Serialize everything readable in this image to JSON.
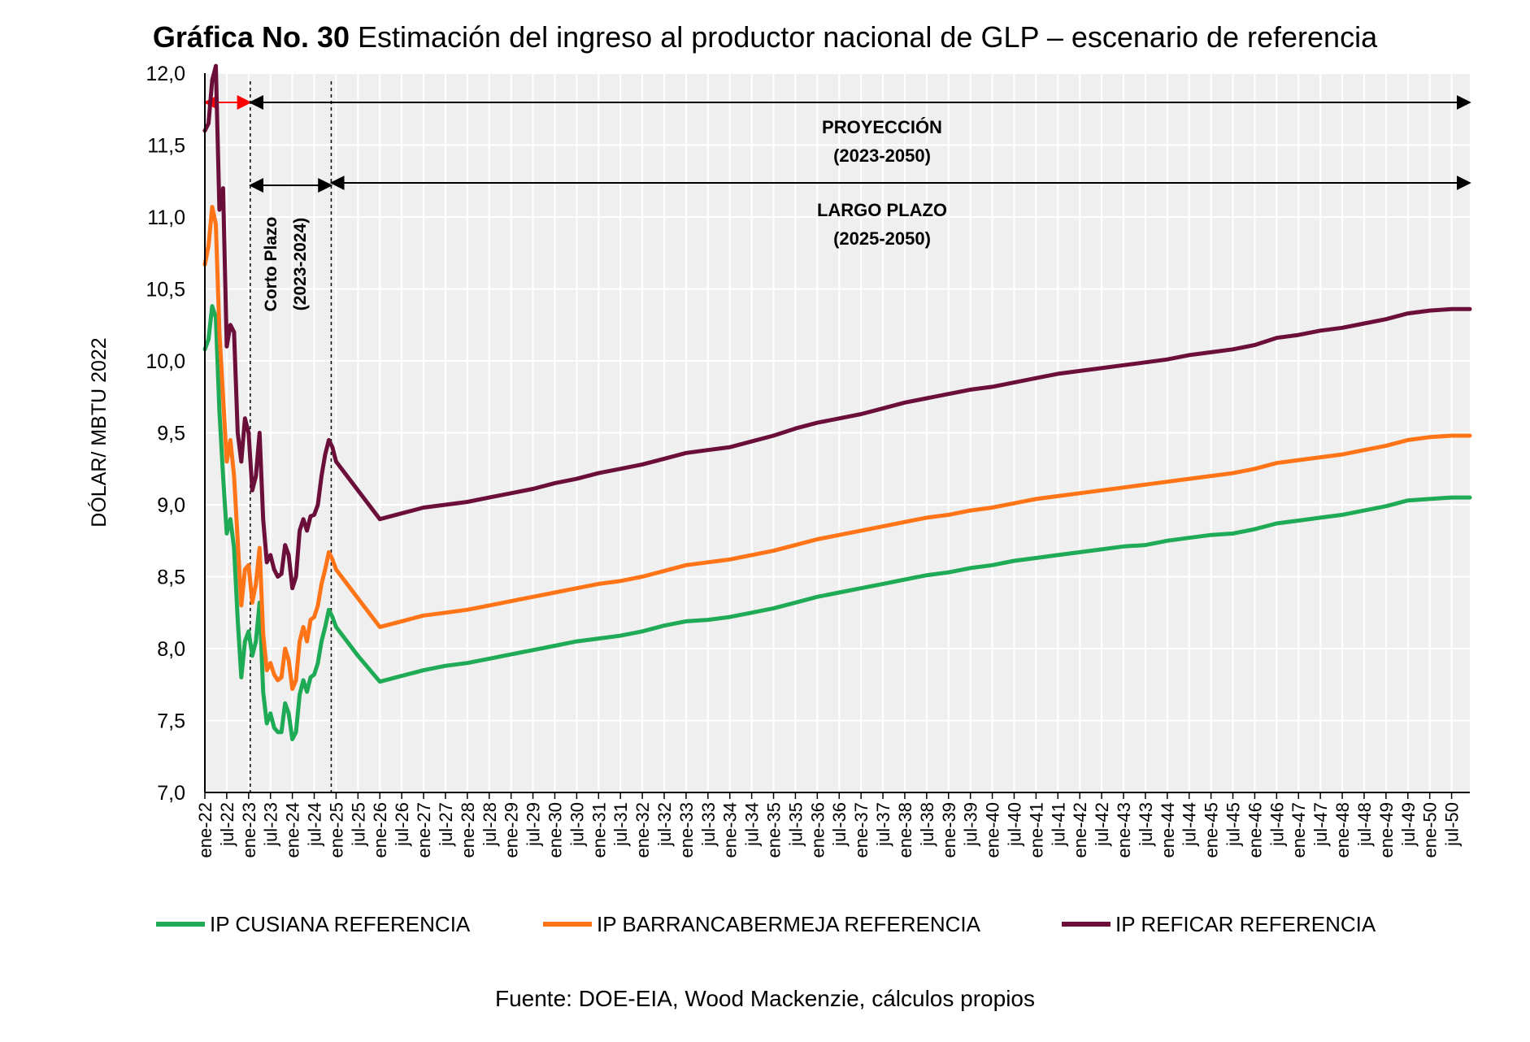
{
  "title_prefix": "Gráfica No. 30",
  "title_rest": "Estimación del ingreso al productor nacional de GLP – escenario de referencia",
  "source": "Fuente: DOE-EIA, Wood Mackenzie, cálculos propios",
  "annotations": {
    "corto_line1": "Corto Plazo",
    "corto_line2": "(2023-2024)",
    "proy_line1": "PROYECCIÓN",
    "proy_line2": "(2023-2050)",
    "largo_line1": "LARGO PLAZO",
    "largo_line2": "(2025-2050)"
  },
  "colors": {
    "cusiana": "#1faa55",
    "barranca": "#ff7417",
    "reficar": "#6b0f3a",
    "plot_bg": "#efefef",
    "grid": "#ffffff",
    "red_arrow": "#ff0000"
  },
  "chart_data": {
    "type": "line",
    "ylabel": "DÓLAR/ MBTU 2022",
    "xlabel": "",
    "ylim": [
      7.0,
      12.0
    ],
    "yticks": [
      "7,0",
      "7,5",
      "8,0",
      "8,5",
      "9,0",
      "9,5",
      "10,0",
      "10,5",
      "11,0",
      "11,5",
      "12,0"
    ],
    "x_start": "ene-22",
    "x_end": "dic-50",
    "xtick_labels": [
      "ene-22",
      "jul-22",
      "ene-23",
      "jul-23",
      "ene-24",
      "jul-24",
      "ene-25",
      "jul-25",
      "ene-26",
      "jul-26",
      "ene-27",
      "jul-27",
      "ene-28",
      "jul-28",
      "ene-29",
      "jul-29",
      "ene-30",
      "jul-30",
      "ene-31",
      "jul-31",
      "ene-32",
      "jul-32",
      "ene-33",
      "jul-33",
      "ene-34",
      "jul-34",
      "ene-35",
      "jul-35",
      "ene-36",
      "jul-36",
      "ene-37",
      "jul-37",
      "ene-38",
      "jul-38",
      "ene-39",
      "jul-39",
      "ene-40",
      "jul-40",
      "ene-41",
      "jul-41",
      "ene-42",
      "jul-42",
      "ene-43",
      "jul-43",
      "ene-44",
      "jul-44",
      "ene-45",
      "jul-45",
      "ene-46",
      "jul-46",
      "ene-47",
      "jul-47",
      "ene-48",
      "jul-48",
      "ene-49",
      "jul-49",
      "ene-50",
      "jul-50"
    ],
    "legend_position": "bottom",
    "series": [
      {
        "name": "IP CUSIANA REFERENCIA",
        "color_key": "cusiana",
        "points": [
          [
            "ene-22",
            10.08
          ],
          [
            "feb-22",
            10.15
          ],
          [
            "mar-22",
            10.38
          ],
          [
            "abr-22",
            10.3
          ],
          [
            "may-22",
            9.65
          ],
          [
            "jun-22",
            9.2
          ],
          [
            "jul-22",
            8.8
          ],
          [
            "ago-22",
            8.9
          ],
          [
            "sep-22",
            8.7
          ],
          [
            "oct-22",
            8.2
          ],
          [
            "nov-22",
            7.8
          ],
          [
            "dic-22",
            8.05
          ],
          [
            "ene-23",
            8.12
          ],
          [
            "feb-23",
            7.95
          ],
          [
            "mar-23",
            8.05
          ],
          [
            "abr-23",
            8.32
          ],
          [
            "may-23",
            7.7
          ],
          [
            "jun-23",
            7.48
          ],
          [
            "jul-23",
            7.55
          ],
          [
            "ago-23",
            7.45
          ],
          [
            "sep-23",
            7.42
          ],
          [
            "oct-23",
            7.42
          ],
          [
            "nov-23",
            7.62
          ],
          [
            "dic-23",
            7.55
          ],
          [
            "ene-24",
            7.37
          ],
          [
            "feb-24",
            7.42
          ],
          [
            "mar-24",
            7.68
          ],
          [
            "abr-24",
            7.78
          ],
          [
            "may-24",
            7.7
          ],
          [
            "jun-24",
            7.8
          ],
          [
            "jul-24",
            7.82
          ],
          [
            "ago-24",
            7.9
          ],
          [
            "sep-24",
            8.05
          ],
          [
            "oct-24",
            8.15
          ],
          [
            "nov-24",
            8.27
          ],
          [
            "dic-24",
            8.22
          ],
          [
            "ene-25",
            8.15
          ],
          [
            "jul-25",
            7.95
          ],
          [
            "ene-26",
            7.77
          ],
          [
            "jul-26",
            7.81
          ],
          [
            "ene-27",
            7.85
          ],
          [
            "jul-27",
            7.88
          ],
          [
            "ene-28",
            7.9
          ],
          [
            "jul-28",
            7.93
          ],
          [
            "ene-29",
            7.96
          ],
          [
            "jul-29",
            7.99
          ],
          [
            "ene-30",
            8.02
          ],
          [
            "jul-30",
            8.05
          ],
          [
            "ene-31",
            8.07
          ],
          [
            "jul-31",
            8.09
          ],
          [
            "ene-32",
            8.12
          ],
          [
            "jul-32",
            8.16
          ],
          [
            "ene-33",
            8.19
          ],
          [
            "jul-33",
            8.2
          ],
          [
            "ene-34",
            8.22
          ],
          [
            "jul-34",
            8.25
          ],
          [
            "ene-35",
            8.28
          ],
          [
            "jul-35",
            8.32
          ],
          [
            "ene-36",
            8.36
          ],
          [
            "jul-36",
            8.39
          ],
          [
            "ene-37",
            8.42
          ],
          [
            "jul-37",
            8.45
          ],
          [
            "ene-38",
            8.48
          ],
          [
            "jul-38",
            8.51
          ],
          [
            "ene-39",
            8.53
          ],
          [
            "jul-39",
            8.56
          ],
          [
            "ene-40",
            8.58
          ],
          [
            "jul-40",
            8.61
          ],
          [
            "ene-41",
            8.63
          ],
          [
            "jul-41",
            8.65
          ],
          [
            "ene-42",
            8.67
          ],
          [
            "jul-42",
            8.69
          ],
          [
            "ene-43",
            8.71
          ],
          [
            "jul-43",
            8.72
          ],
          [
            "ene-44",
            8.75
          ],
          [
            "jul-44",
            8.77
          ],
          [
            "ene-45",
            8.79
          ],
          [
            "jul-45",
            8.8
          ],
          [
            "ene-46",
            8.83
          ],
          [
            "jul-46",
            8.87
          ],
          [
            "ene-47",
            8.89
          ],
          [
            "jul-47",
            8.91
          ],
          [
            "ene-48",
            8.93
          ],
          [
            "jul-48",
            8.96
          ],
          [
            "ene-49",
            8.99
          ],
          [
            "jul-49",
            9.03
          ],
          [
            "ene-50",
            9.04
          ],
          [
            "jul-50",
            9.05
          ],
          [
            "dic-50",
            9.05
          ]
        ]
      },
      {
        "name": "IP BARRANCABERMEJA REFERENCIA",
        "color_key": "barranca",
        "points": [
          [
            "ene-22",
            10.67
          ],
          [
            "feb-22",
            10.8
          ],
          [
            "mar-22",
            11.07
          ],
          [
            "abr-22",
            10.95
          ],
          [
            "may-22",
            10.2
          ],
          [
            "jun-22",
            9.75
          ],
          [
            "jul-22",
            9.3
          ],
          [
            "ago-22",
            9.45
          ],
          [
            "sep-22",
            9.2
          ],
          [
            "oct-22",
            8.75
          ],
          [
            "nov-22",
            8.3
          ],
          [
            "dic-22",
            8.55
          ],
          [
            "ene-23",
            8.58
          ],
          [
            "feb-23",
            8.32
          ],
          [
            "mar-23",
            8.45
          ],
          [
            "abr-23",
            8.7
          ],
          [
            "may-23",
            8.1
          ],
          [
            "jun-23",
            7.85
          ],
          [
            "jul-23",
            7.9
          ],
          [
            "ago-23",
            7.82
          ],
          [
            "sep-23",
            7.78
          ],
          [
            "oct-23",
            7.8
          ],
          [
            "nov-23",
            8.0
          ],
          [
            "dic-23",
            7.92
          ],
          [
            "ene-24",
            7.72
          ],
          [
            "feb-24",
            7.78
          ],
          [
            "mar-24",
            8.05
          ],
          [
            "abr-24",
            8.15
          ],
          [
            "may-24",
            8.05
          ],
          [
            "jun-24",
            8.2
          ],
          [
            "jul-24",
            8.22
          ],
          [
            "ago-24",
            8.3
          ],
          [
            "sep-24",
            8.45
          ],
          [
            "oct-24",
            8.55
          ],
          [
            "nov-24",
            8.67
          ],
          [
            "dic-24",
            8.62
          ],
          [
            "ene-25",
            8.55
          ],
          [
            "jul-25",
            8.35
          ],
          [
            "ene-26",
            8.15
          ],
          [
            "jul-26",
            8.19
          ],
          [
            "ene-27",
            8.23
          ],
          [
            "jul-27",
            8.25
          ],
          [
            "ene-28",
            8.27
          ],
          [
            "jul-28",
            8.3
          ],
          [
            "ene-29",
            8.33
          ],
          [
            "jul-29",
            8.36
          ],
          [
            "ene-30",
            8.39
          ],
          [
            "jul-30",
            8.42
          ],
          [
            "ene-31",
            8.45
          ],
          [
            "jul-31",
            8.47
          ],
          [
            "ene-32",
            8.5
          ],
          [
            "jul-32",
            8.54
          ],
          [
            "ene-33",
            8.58
          ],
          [
            "jul-33",
            8.6
          ],
          [
            "ene-34",
            8.62
          ],
          [
            "jul-34",
            8.65
          ],
          [
            "ene-35",
            8.68
          ],
          [
            "jul-35",
            8.72
          ],
          [
            "ene-36",
            8.76
          ],
          [
            "jul-36",
            8.79
          ],
          [
            "ene-37",
            8.82
          ],
          [
            "jul-37",
            8.85
          ],
          [
            "ene-38",
            8.88
          ],
          [
            "jul-38",
            8.91
          ],
          [
            "ene-39",
            8.93
          ],
          [
            "jul-39",
            8.96
          ],
          [
            "ene-40",
            8.98
          ],
          [
            "jul-40",
            9.01
          ],
          [
            "ene-41",
            9.04
          ],
          [
            "jul-41",
            9.06
          ],
          [
            "ene-42",
            9.08
          ],
          [
            "jul-42",
            9.1
          ],
          [
            "ene-43",
            9.12
          ],
          [
            "jul-43",
            9.14
          ],
          [
            "ene-44",
            9.16
          ],
          [
            "jul-44",
            9.18
          ],
          [
            "ene-45",
            9.2
          ],
          [
            "jul-45",
            9.22
          ],
          [
            "ene-46",
            9.25
          ],
          [
            "jul-46",
            9.29
          ],
          [
            "ene-47",
            9.31
          ],
          [
            "jul-47",
            9.33
          ],
          [
            "ene-48",
            9.35
          ],
          [
            "jul-48",
            9.38
          ],
          [
            "ene-49",
            9.41
          ],
          [
            "jul-49",
            9.45
          ],
          [
            "ene-50",
            9.47
          ],
          [
            "jul-50",
            9.48
          ],
          [
            "dic-50",
            9.48
          ]
        ]
      },
      {
        "name": "IP REFICAR REFERENCIA",
        "color_key": "reficar",
        "points": [
          [
            "ene-22",
            11.6
          ],
          [
            "feb-22",
            11.65
          ],
          [
            "mar-22",
            11.95
          ],
          [
            "abr-22",
            12.05
          ],
          [
            "may-22",
            11.05
          ],
          [
            "jun-22",
            11.2
          ],
          [
            "jul-22",
            10.1
          ],
          [
            "ago-22",
            10.25
          ],
          [
            "sep-22",
            10.2
          ],
          [
            "oct-22",
            9.5
          ],
          [
            "nov-22",
            9.3
          ],
          [
            "dic-22",
            9.6
          ],
          [
            "ene-23",
            9.5
          ],
          [
            "feb-23",
            9.1
          ],
          [
            "mar-23",
            9.2
          ],
          [
            "abr-23",
            9.5
          ],
          [
            "may-23",
            8.9
          ],
          [
            "jun-23",
            8.6
          ],
          [
            "jul-23",
            8.65
          ],
          [
            "ago-23",
            8.55
          ],
          [
            "sep-23",
            8.5
          ],
          [
            "oct-23",
            8.52
          ],
          [
            "nov-23",
            8.72
          ],
          [
            "dic-23",
            8.65
          ],
          [
            "ene-24",
            8.42
          ],
          [
            "feb-24",
            8.5
          ],
          [
            "mar-24",
            8.82
          ],
          [
            "abr-24",
            8.9
          ],
          [
            "may-24",
            8.82
          ],
          [
            "jun-24",
            8.92
          ],
          [
            "jul-24",
            8.93
          ],
          [
            "ago-24",
            9.0
          ],
          [
            "sep-24",
            9.2
          ],
          [
            "oct-24",
            9.35
          ],
          [
            "nov-24",
            9.45
          ],
          [
            "dic-24",
            9.4
          ],
          [
            "ene-25",
            9.3
          ],
          [
            "jul-25",
            9.1
          ],
          [
            "ene-26",
            8.9
          ],
          [
            "jul-26",
            8.94
          ],
          [
            "ene-27",
            8.98
          ],
          [
            "jul-27",
            9.0
          ],
          [
            "ene-28",
            9.02
          ],
          [
            "jul-28",
            9.05
          ],
          [
            "ene-29",
            9.08
          ],
          [
            "jul-29",
            9.11
          ],
          [
            "ene-30",
            9.15
          ],
          [
            "jul-30",
            9.18
          ],
          [
            "ene-31",
            9.22
          ],
          [
            "jul-31",
            9.25
          ],
          [
            "ene-32",
            9.28
          ],
          [
            "jul-32",
            9.32
          ],
          [
            "ene-33",
            9.36
          ],
          [
            "jul-33",
            9.38
          ],
          [
            "ene-34",
            9.4
          ],
          [
            "jul-34",
            9.44
          ],
          [
            "ene-35",
            9.48
          ],
          [
            "jul-35",
            9.53
          ],
          [
            "ene-36",
            9.57
          ],
          [
            "jul-36",
            9.6
          ],
          [
            "ene-37",
            9.63
          ],
          [
            "jul-37",
            9.67
          ],
          [
            "ene-38",
            9.71
          ],
          [
            "jul-38",
            9.74
          ],
          [
            "ene-39",
            9.77
          ],
          [
            "jul-39",
            9.8
          ],
          [
            "ene-40",
            9.82
          ],
          [
            "jul-40",
            9.85
          ],
          [
            "ene-41",
            9.88
          ],
          [
            "jul-41",
            9.91
          ],
          [
            "ene-42",
            9.93
          ],
          [
            "jul-42",
            9.95
          ],
          [
            "ene-43",
            9.97
          ],
          [
            "jul-43",
            9.99
          ],
          [
            "ene-44",
            10.01
          ],
          [
            "jul-44",
            10.04
          ],
          [
            "ene-45",
            10.06
          ],
          [
            "jul-45",
            10.08
          ],
          [
            "ene-46",
            10.11
          ],
          [
            "jul-46",
            10.16
          ],
          [
            "ene-47",
            10.18
          ],
          [
            "jul-47",
            10.21
          ],
          [
            "ene-48",
            10.23
          ],
          [
            "jul-48",
            10.26
          ],
          [
            "ene-49",
            10.29
          ],
          [
            "jul-49",
            10.33
          ],
          [
            "ene-50",
            10.35
          ],
          [
            "jul-50",
            10.36
          ],
          [
            "dic-50",
            10.36
          ]
        ]
      }
    ]
  }
}
